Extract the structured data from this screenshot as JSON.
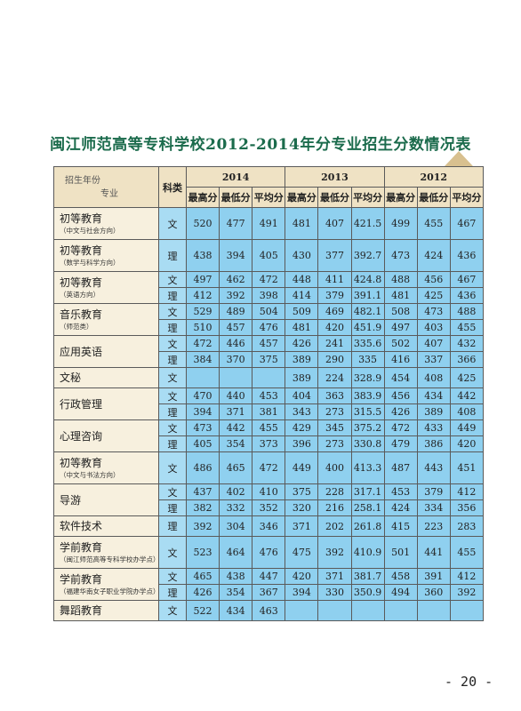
{
  "title": "闽江师范高等专科学校2012-2014年分专业招生分数情况表",
  "table": {
    "header": {
      "corner_top": "招生年份",
      "corner_bottom": "专业",
      "category": "科类",
      "years": [
        "2014",
        "2013",
        "2012"
      ],
      "subheaders": [
        "最高分",
        "最低分",
        "平均分"
      ]
    },
    "groups": [
      {
        "major": "初等教育",
        "note": "（中文与社会方向）",
        "rows": [
          {
            "type": "文",
            "scores": [
              520,
              477,
              491,
              481,
              407,
              421.5,
              499,
              455,
              467
            ]
          }
        ]
      },
      {
        "major": "初等教育",
        "note": "（数学与科学方向）",
        "rows": [
          {
            "type": "理",
            "scores": [
              438,
              394,
              405,
              430,
              377,
              392.7,
              473,
              424,
              436
            ]
          }
        ]
      },
      {
        "major": "初等教育",
        "note": "（英语方向）",
        "rows": [
          {
            "type": "文",
            "scores": [
              497,
              462,
              472,
              448,
              411,
              424.8,
              488,
              456,
              467
            ]
          },
          {
            "type": "理",
            "scores": [
              412,
              392,
              398,
              414,
              379,
              391.1,
              481,
              425,
              436
            ]
          }
        ]
      },
      {
        "major": "音乐教育",
        "note": "（师范类）",
        "rows": [
          {
            "type": "文",
            "scores": [
              529,
              489,
              504,
              509,
              469,
              482.1,
              508,
              473,
              488
            ]
          },
          {
            "type": "理",
            "scores": [
              510,
              457,
              476,
              481,
              420,
              451.9,
              497,
              403,
              455
            ]
          }
        ]
      },
      {
        "major": "应用英语",
        "rows": [
          {
            "type": "文",
            "scores": [
              472,
              446,
              457,
              426,
              241,
              335.6,
              502,
              407,
              432
            ]
          },
          {
            "type": "理",
            "scores": [
              384,
              370,
              375,
              389,
              290,
              335,
              416,
              337,
              366
            ]
          }
        ]
      },
      {
        "major": "文秘",
        "rows": [
          {
            "type": "文",
            "scores": [
              null,
              null,
              null,
              389,
              224,
              328.9,
              454,
              408,
              425
            ]
          }
        ]
      },
      {
        "major": "行政管理",
        "rows": [
          {
            "type": "文",
            "scores": [
              470,
              440,
              453,
              404,
              363,
              383.9,
              456,
              434,
              442
            ]
          },
          {
            "type": "理",
            "scores": [
              394,
              371,
              381,
              343,
              273,
              315.5,
              426,
              389,
              408
            ]
          }
        ]
      },
      {
        "major": "心理咨询",
        "rows": [
          {
            "type": "文",
            "scores": [
              473,
              442,
              455,
              429,
              345,
              375.2,
              472,
              433,
              449
            ]
          },
          {
            "type": "理",
            "scores": [
              405,
              354,
              373,
              396,
              273,
              330.8,
              479,
              386,
              420
            ]
          }
        ]
      },
      {
        "major": "初等教育",
        "note": "（中文与书法方向）",
        "rows": [
          {
            "type": "文",
            "scores": [
              486,
              465,
              472,
              449,
              400,
              413.3,
              487,
              443,
              451
            ]
          }
        ]
      },
      {
        "major": "导游",
        "rows": [
          {
            "type": "文",
            "scores": [
              437,
              402,
              410,
              375,
              228,
              317.1,
              453,
              379,
              412
            ]
          },
          {
            "type": "理",
            "scores": [
              382,
              332,
              352,
              320,
              216,
              258.1,
              424,
              334,
              356
            ]
          }
        ]
      },
      {
        "major": "软件技术",
        "rows": [
          {
            "type": "理",
            "scores": [
              392,
              304,
              346,
              371,
              202,
              261.8,
              415,
              223,
              283
            ]
          }
        ]
      },
      {
        "major": "学前教育",
        "note": "（闽江师范高等专科学校办学点）",
        "rows": [
          {
            "type": "文",
            "scores": [
              523,
              464,
              476,
              475,
              392,
              410.9,
              501,
              441,
              455
            ]
          }
        ]
      },
      {
        "major": "学前教育",
        "note": "（福建华南女子职业学院办学点）",
        "rows": [
          {
            "type": "文",
            "scores": [
              465,
              438,
              447,
              420,
              371,
              381.7,
              458,
              391,
              412
            ]
          },
          {
            "type": "理",
            "scores": [
              426,
              354,
              367,
              394,
              330,
              350.9,
              494,
              360,
              392
            ]
          }
        ]
      },
      {
        "major": "舞蹈教育",
        "rows": [
          {
            "type": "文",
            "scores": [
              522,
              434,
              463,
              null,
              null,
              null,
              null,
              null,
              null
            ]
          }
        ]
      }
    ]
  },
  "page_number": "- 20 -"
}
